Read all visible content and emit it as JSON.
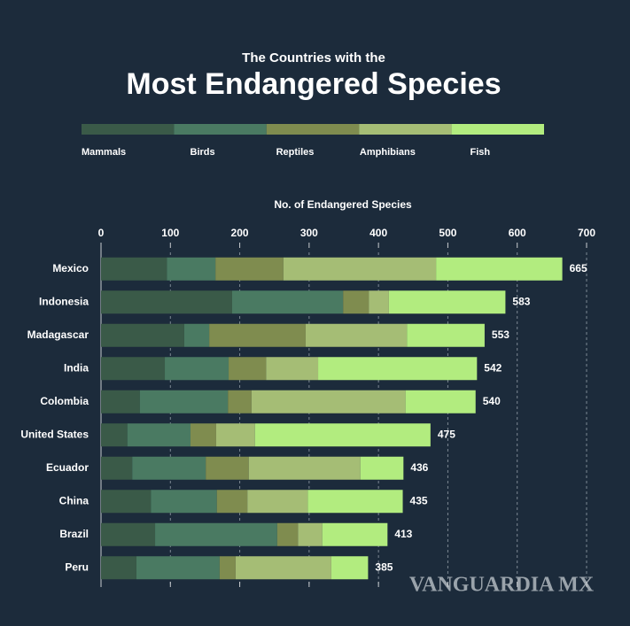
{
  "chart_data": {
    "type": "stacked-bar-horizontal",
    "title": "The Countries with the",
    "subtitle": "Most Endangered Species",
    "x_label": "No. of Endangered Species",
    "watermark": "VANGUARDIA MX",
    "categories": [
      "Mexico",
      "Indonesia",
      "Madagascar",
      "India",
      "Colombia",
      "United States",
      "Ecuador",
      "China",
      "Brazil",
      "Peru"
    ],
    "series": [
      {
        "name": "Mammals",
        "color": "#3a5a48",
        "values": [
          95,
          189,
          120,
          92,
          56,
          38,
          45,
          72,
          78,
          51
        ]
      },
      {
        "name": "Birds",
        "color": "#4a7a62",
        "values": [
          70,
          160,
          36,
          92,
          127,
          91,
          106,
          95,
          176,
          120
        ]
      },
      {
        "name": "Reptiles",
        "color": "#7f8c4f",
        "values": [
          98,
          37,
          139,
          54,
          34,
          37,
          62,
          44,
          30,
          23
        ]
      },
      {
        "name": "Amphibians",
        "color": "#a5bd75",
        "values": [
          220,
          29,
          146,
          75,
          222,
          56,
          161,
          87,
          35,
          138
        ]
      },
      {
        "name": "Fish",
        "color": "#b2ec7f",
        "values": [
          182,
          168,
          112,
          229,
          101,
          253,
          62,
          137,
          94,
          53
        ]
      }
    ],
    "totals": [
      665,
      583,
      553,
      542,
      540,
      475,
      436,
      435,
      413,
      385
    ],
    "xlim": [
      0,
      700
    ],
    "xticks": [
      0,
      100,
      200,
      300,
      400,
      500,
      600,
      700
    ],
    "grid": true
  }
}
